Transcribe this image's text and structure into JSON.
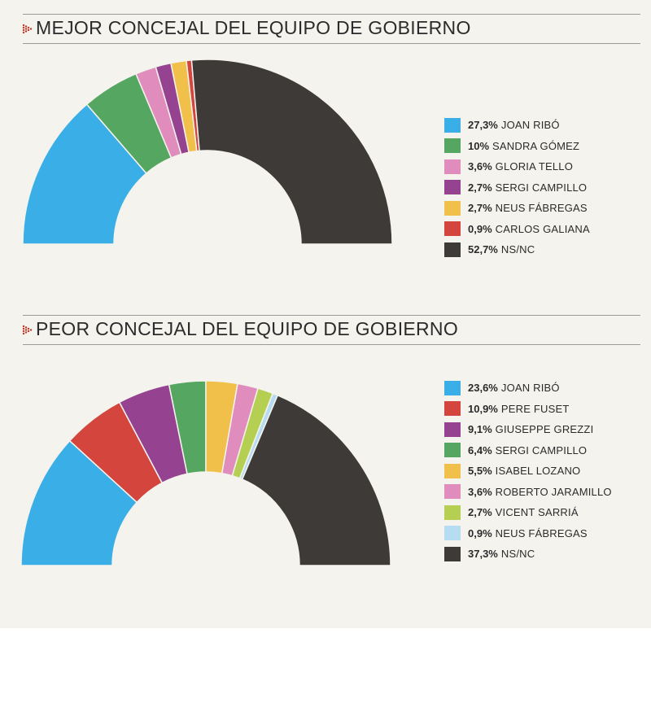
{
  "colors": {
    "background": "#f4f3ee",
    "accent_icon": "#c0392b",
    "slice_border": "#f4f3ee"
  },
  "chart_data": [
    {
      "type": "pie",
      "title": "MEJOR CONCEJAL DEL EQUIPO DE GOBIERNO",
      "legend_position": "right",
      "slices": [
        {
          "pct_label": "27,3%",
          "label": "JOAN RIBÓ",
          "value": 27.3,
          "color": "#3aaee6"
        },
        {
          "pct_label": "10%",
          "label": "SANDRA GÓMEZ",
          "value": 10,
          "color": "#55a661"
        },
        {
          "pct_label": "3,6%",
          "label": "GLORIA TELLO",
          "value": 3.6,
          "color": "#e08cbc"
        },
        {
          "pct_label": "2,7%",
          "label": "SERGI CAMPILLO",
          "value": 2.7,
          "color": "#954391"
        },
        {
          "pct_label": "2,7%",
          "label": "NEUS FÁBREGAS",
          "value": 2.7,
          "color": "#f1c04a"
        },
        {
          "pct_label": "0,9%",
          "label": "CARLOS GALIANA",
          "value": 0.9,
          "color": "#d4453e"
        },
        {
          "pct_label": "52,7%",
          "label": "NS/NC",
          "value": 52.7,
          "color": "#3d3a38"
        }
      ]
    },
    {
      "type": "pie",
      "title": "PEOR CONCEJAL DEL EQUIPO DE GOBIERNO",
      "legend_position": "right",
      "slices": [
        {
          "pct_label": "23,6%",
          "label": "JOAN RIBÓ",
          "value": 23.6,
          "color": "#3aaee6"
        },
        {
          "pct_label": "10,9%",
          "label": "PERE FUSET",
          "value": 10.9,
          "color": "#d4453e"
        },
        {
          "pct_label": "9,1%",
          "label": "GIUSEPPE GREZZI",
          "value": 9.1,
          "color": "#954391"
        },
        {
          "pct_label": "6,4%",
          "label": "SERGI CAMPILLO",
          "value": 6.4,
          "color": "#55a661"
        },
        {
          "pct_label": "5,5%",
          "label": "ISABEL LOZANO",
          "value": 5.5,
          "color": "#f1c04a"
        },
        {
          "pct_label": "3,6%",
          "label": "ROBERTO JARAMILLO",
          "value": 3.6,
          "color": "#e08cbc"
        },
        {
          "pct_label": "2,7%",
          "label": "VICENT SARRIÁ",
          "value": 2.7,
          "color": "#b5cf53"
        },
        {
          "pct_label": "0,9%",
          "label": "NEUS FÁBREGAS",
          "value": 0.9,
          "color": "#b6dcf2"
        },
        {
          "pct_label": "37,3%",
          "label": "NS/NC",
          "value": 37.3,
          "color": "#3d3a38"
        }
      ]
    }
  ]
}
